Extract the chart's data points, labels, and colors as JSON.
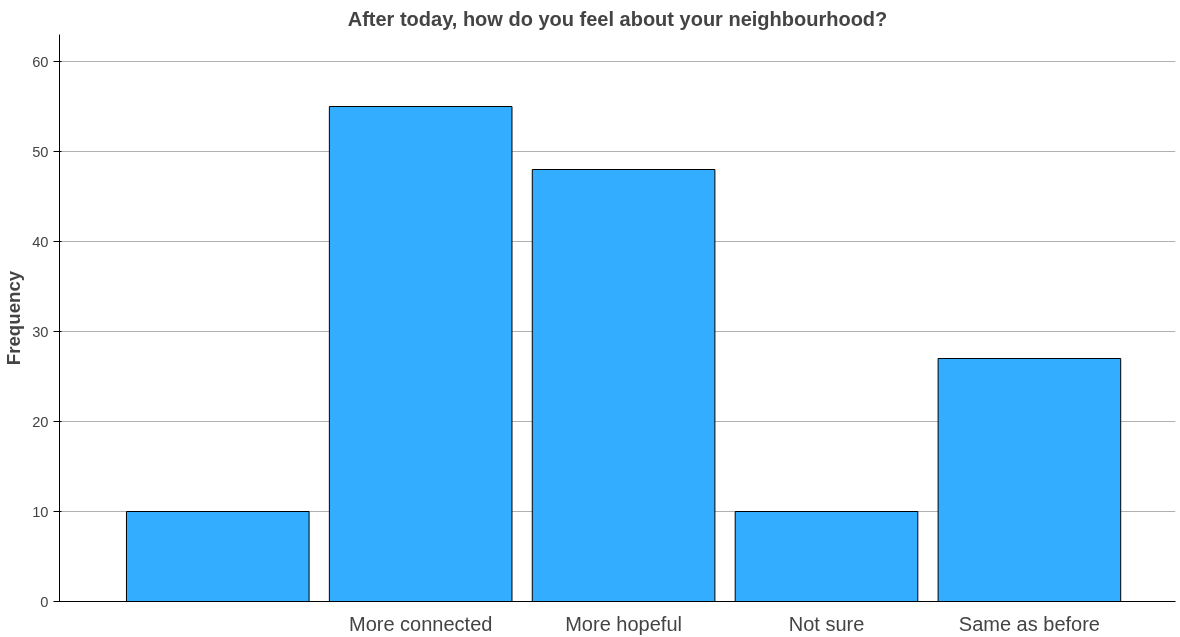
{
  "chart_data": {
    "type": "bar",
    "title": "After today, how do you feel about your neighbourhood?",
    "ylabel": "Frequency",
    "categories": [
      null,
      "More connected",
      "More hopeful",
      "Not sure",
      "Same as before"
    ],
    "values": [
      10,
      55,
      48,
      10,
      27
    ],
    "color": "#33adff",
    "ylim": [
      0,
      63
    ],
    "yticks": [
      0,
      10,
      20,
      30,
      40,
      50,
      60
    ],
    "grid": "y"
  }
}
